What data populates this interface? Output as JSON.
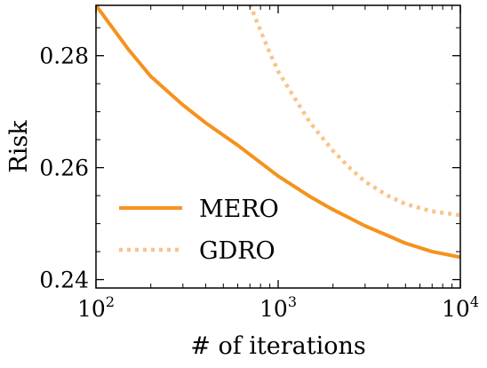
{
  "chart_data": {
    "type": "line",
    "xlabel": "# of iterations",
    "ylabel": "Risk",
    "xscale": "log",
    "xlim": [
      100,
      10000
    ],
    "ylim": [
      0.2385,
      0.289
    ],
    "x_ticks": [
      {
        "value": 100,
        "base": "10",
        "exp": "2"
      },
      {
        "value": 1000,
        "base": "10",
        "exp": "3"
      },
      {
        "value": 10000,
        "base": "10",
        "exp": "4"
      }
    ],
    "y_ticks": [
      {
        "value": 0.24,
        "label": "0.24"
      },
      {
        "value": 0.26,
        "label": "0.26"
      },
      {
        "value": 0.28,
        "label": "0.28"
      }
    ],
    "legend_position": "lower-left",
    "grid": false,
    "series": [
      {
        "name": "MERO",
        "color": "#f5921e",
        "style": "solid",
        "x": [
          100,
          150,
          200,
          300,
          400,
          600,
          1000,
          1500,
          2000,
          3000,
          5000,
          7000,
          10000
        ],
        "y": [
          0.289,
          0.2812,
          0.2763,
          0.2712,
          0.268,
          0.264,
          0.2585,
          0.2548,
          0.2525,
          0.2496,
          0.2465,
          0.245,
          0.244
        ]
      },
      {
        "name": "GDRO",
        "color": "#f9c48a",
        "style": "dotted",
        "x": [
          700,
          800,
          900,
          1000,
          1200,
          1500,
          2000,
          2500,
          3000,
          4000,
          5000,
          7000,
          10000
        ],
        "y": [
          0.2892,
          0.2845,
          0.2805,
          0.2772,
          0.273,
          0.268,
          0.263,
          0.2598,
          0.2575,
          0.255,
          0.2535,
          0.2522,
          0.2515
        ]
      }
    ]
  }
}
